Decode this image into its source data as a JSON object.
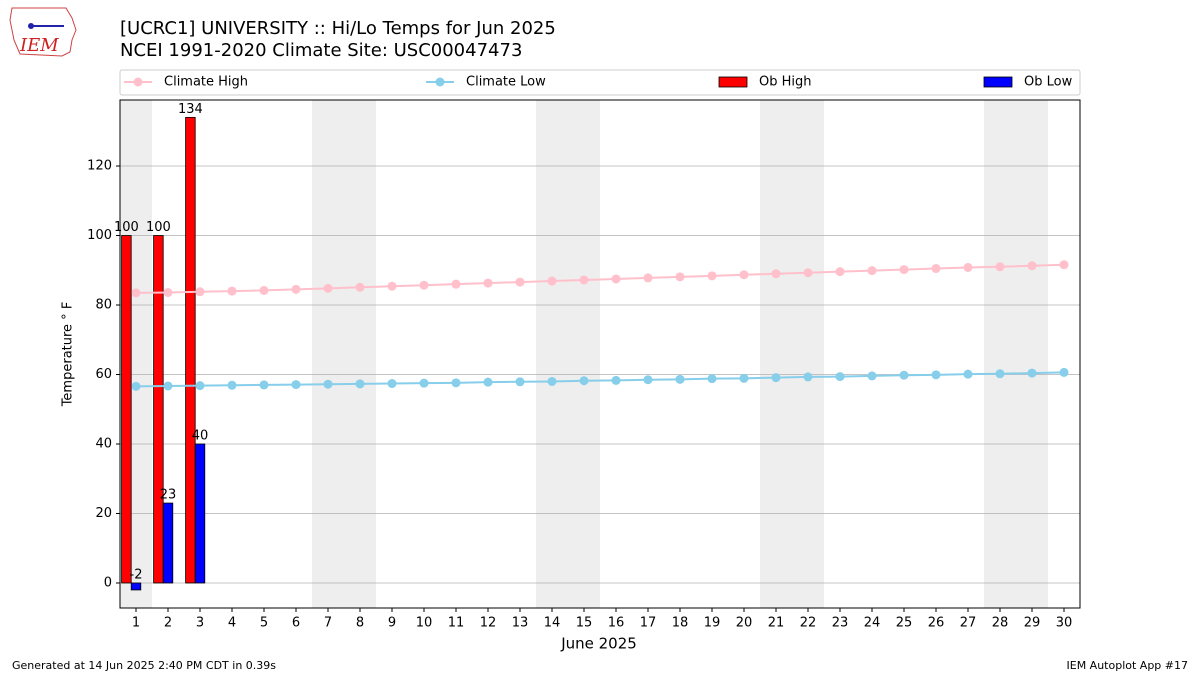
{
  "logo_text": "IEM",
  "footer_left": "Generated at 14 Jun 2025 2:40 PM CDT in 0.39s",
  "footer_right": "IEM Autoplot App #17",
  "chart_data": {
    "type": "bar",
    "title": "[UCRC1] UNIVERSITY :: Hi/Lo Temps for Jun 2025",
    "subtitle": "NCEI 1991-2020 Climate Site: USC00047473",
    "x_label": "June 2025",
    "y_label": "Temperature ° F",
    "x": [
      1,
      2,
      3,
      4,
      5,
      6,
      7,
      8,
      9,
      10,
      11,
      12,
      13,
      14,
      15,
      16,
      17,
      18,
      19,
      20,
      21,
      22,
      23,
      24,
      25,
      26,
      27,
      28,
      29,
      30
    ],
    "xlim": [
      0.5,
      30.5
    ],
    "xticks": [
      1,
      2,
      3,
      4,
      5,
      6,
      7,
      8,
      9,
      10,
      11,
      12,
      13,
      14,
      15,
      16,
      17,
      18,
      19,
      20,
      21,
      22,
      23,
      24,
      25,
      26,
      27,
      28,
      29,
      30
    ],
    "ylim": [
      -7.2,
      139
    ],
    "yticks": [
      0,
      20,
      40,
      60,
      80,
      100,
      120
    ],
    "grid": true,
    "shaded_days": [
      1,
      7,
      8,
      14,
      15,
      21,
      22,
      28,
      29
    ],
    "shade_color": "#eeeeee",
    "series": [
      {
        "name": "Climate High",
        "type": "line",
        "color": "#ffc0cb",
        "values": [
          83.5,
          83.6,
          83.8,
          84.0,
          84.2,
          84.5,
          84.8,
          85.1,
          85.4,
          85.7,
          86.0,
          86.3,
          86.6,
          86.9,
          87.2,
          87.5,
          87.8,
          88.1,
          88.4,
          88.7,
          89.0,
          89.3,
          89.6,
          89.9,
          90.2,
          90.5,
          90.8,
          91.0,
          91.3,
          91.6
        ]
      },
      {
        "name": "Climate Low",
        "type": "line",
        "color": "#87ceeb",
        "values": [
          56.6,
          56.7,
          56.8,
          56.9,
          57.0,
          57.1,
          57.2,
          57.3,
          57.4,
          57.5,
          57.6,
          57.8,
          57.9,
          58.0,
          58.2,
          58.3,
          58.5,
          58.6,
          58.8,
          58.9,
          59.1,
          59.3,
          59.4,
          59.6,
          59.8,
          59.9,
          60.1,
          60.2,
          60.4,
          60.6
        ]
      },
      {
        "name": "Ob High",
        "type": "bar",
        "color": "#ff0000",
        "values": [
          100,
          100,
          134,
          null,
          null,
          null,
          null,
          null,
          null,
          null,
          null,
          null,
          null,
          null,
          null,
          null,
          null,
          null,
          null,
          null,
          null,
          null,
          null,
          null,
          null,
          null,
          null,
          null,
          null,
          null
        ]
      },
      {
        "name": "Ob Low",
        "type": "bar",
        "color": "#0000ff",
        "values": [
          -2,
          23,
          40,
          null,
          null,
          null,
          null,
          null,
          null,
          null,
          null,
          null,
          null,
          null,
          null,
          null,
          null,
          null,
          null,
          null,
          null,
          null,
          null,
          null,
          null,
          null,
          null,
          null,
          null,
          null
        ]
      }
    ]
  }
}
